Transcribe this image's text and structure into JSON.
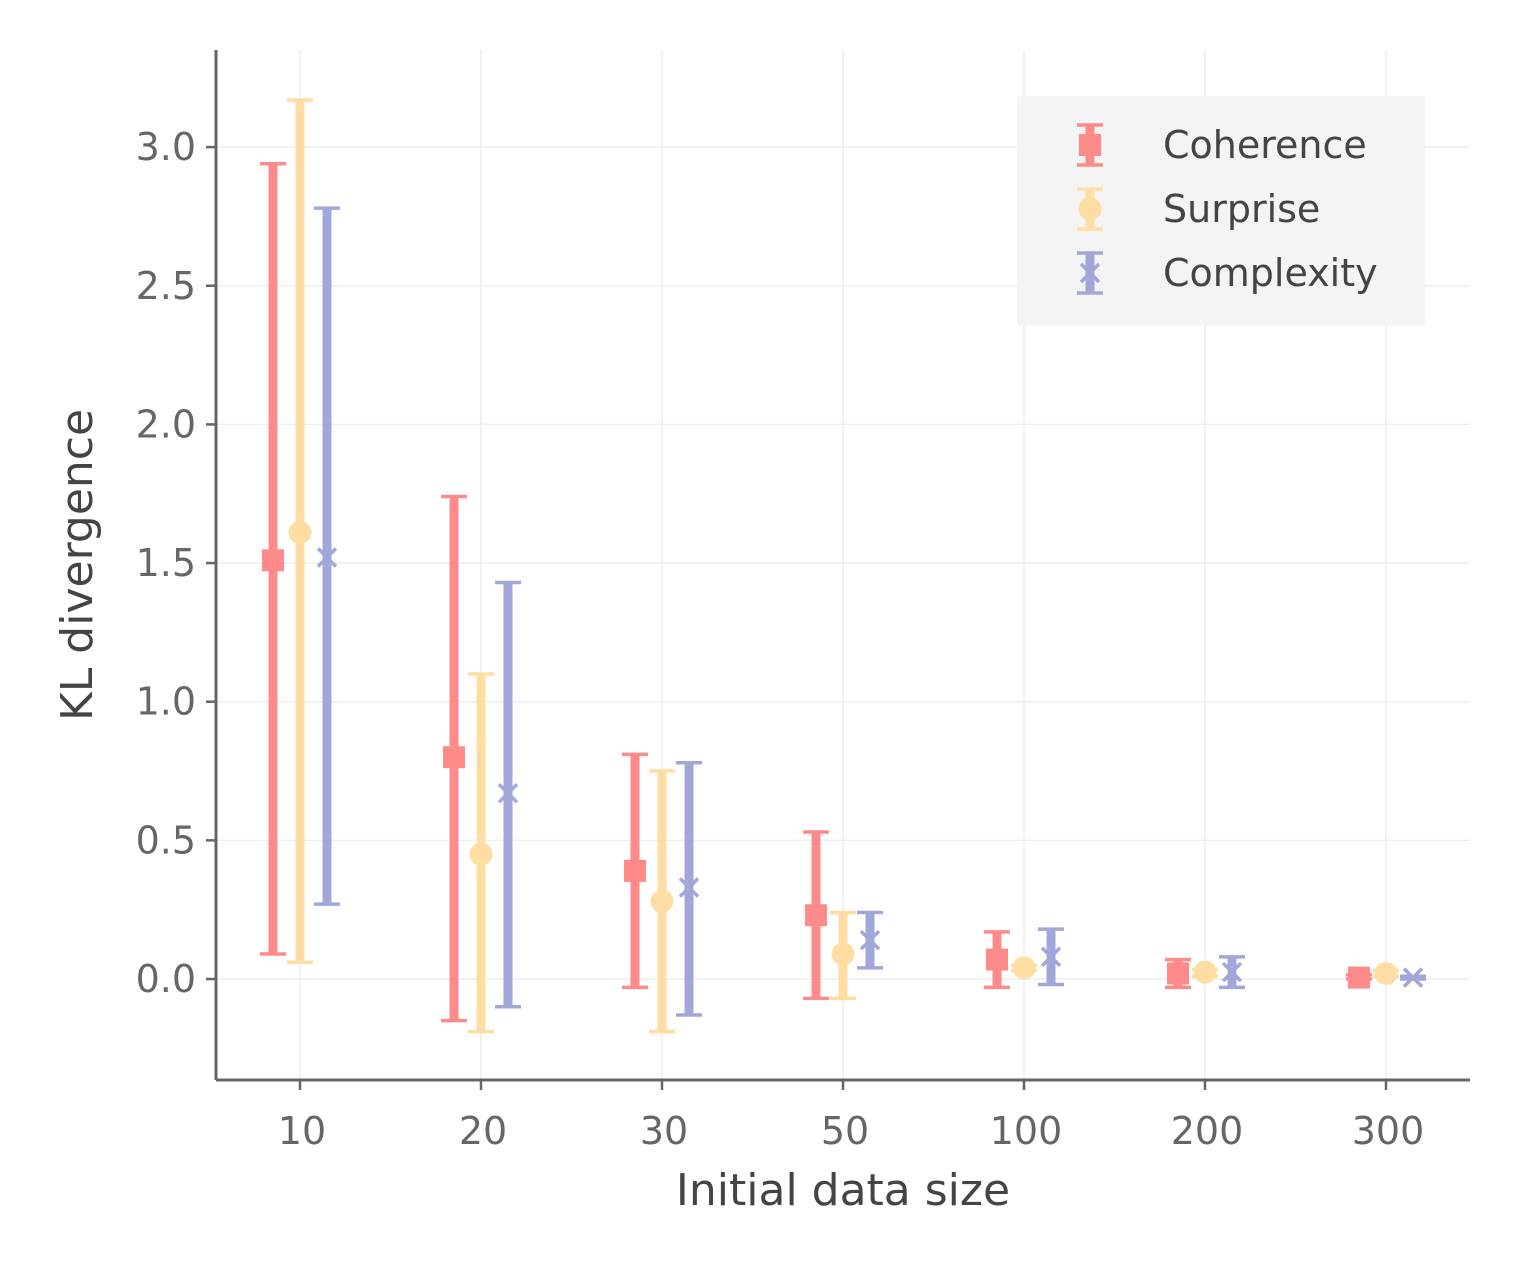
{
  "chart_data": {
    "type": "scatter",
    "title": "",
    "xlabel": "Initial data size",
    "ylabel": "KL divergence",
    "categories": [
      "10",
      "20",
      "30",
      "50",
      "100",
      "200",
      "300"
    ],
    "yticks": [
      "0.0",
      "0.5",
      "1.0",
      "1.5",
      "2.0",
      "2.5",
      "3.0"
    ],
    "ylim": [
      -0.36,
      3.3
    ],
    "grid": true,
    "legend_position": "top-right",
    "series": [
      {
        "name": "Coherence",
        "marker": "square",
        "color": "#ff8a8a",
        "values": [
          1.51,
          0.8,
          0.39,
          0.23,
          0.07,
          0.02,
          0.005
        ],
        "lower": [
          0.09,
          -0.15,
          -0.03,
          -0.07,
          -0.03,
          -0.03,
          0.0
        ],
        "upper": [
          2.94,
          1.74,
          0.81,
          0.53,
          0.17,
          0.07,
          0.015
        ]
      },
      {
        "name": "Surprise",
        "marker": "circle",
        "color": "#ffdda3",
        "values": [
          1.61,
          0.45,
          0.28,
          0.09,
          0.04,
          0.025,
          0.02
        ],
        "lower": [
          0.06,
          -0.19,
          -0.19,
          -0.07,
          0.03,
          0.01,
          0.01
        ],
        "upper": [
          3.17,
          1.1,
          0.75,
          0.24,
          0.05,
          0.035,
          0.03
        ]
      },
      {
        "name": "Complexity",
        "marker": "x",
        "color": "#a3a6d9",
        "values": [
          1.52,
          0.67,
          0.33,
          0.14,
          0.08,
          0.025,
          0.005
        ],
        "lower": [
          0.27,
          -0.1,
          -0.13,
          0.04,
          -0.02,
          -0.03,
          0.0
        ],
        "upper": [
          2.78,
          1.43,
          0.78,
          0.24,
          0.18,
          0.08,
          0.01
        ]
      }
    ]
  }
}
